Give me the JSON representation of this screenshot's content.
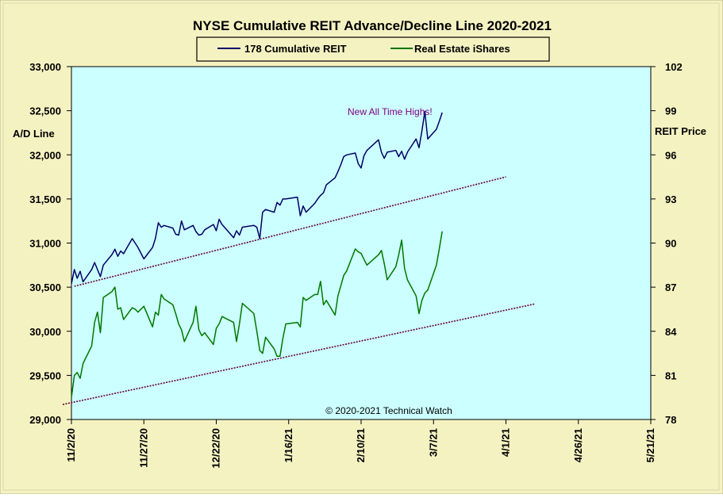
{
  "chart_data": {
    "type": "line",
    "title": "NYSE Cumulative  REIT Advance/Decline  Line 2020-2021",
    "ylabel_left": "A/D Line",
    "ylabel_right": "REIT  Price",
    "annotation": "New All Time Highs!",
    "copyright": "© 2020-2021  Technical  Watch",
    "legend_position": "top-center",
    "grid": false,
    "ylim_left": [
      29000,
      33000
    ],
    "ylim_right": [
      78,
      102
    ],
    "x_range": [
      "2020-11-02",
      "2021-05-21"
    ],
    "y_ticks_left": [
      "29,000",
      "29,500",
      "30,000",
      "30,500",
      "31,000",
      "31,500",
      "32,000",
      "32,500",
      "33,000"
    ],
    "y_ticks_right": [
      "78",
      "81",
      "84",
      "87",
      "90",
      "93",
      "96",
      "99",
      "102"
    ],
    "x_ticks": [
      "11/2/20",
      "11/27/20",
      "12/22/20",
      "1/16/21",
      "2/10/21",
      "3/7/21",
      "4/1/21",
      "4/26/21",
      "5/21/21"
    ],
    "colors": {
      "series_ad": "#000066",
      "series_reit": "#007700",
      "trend": "#660033",
      "plot_bg": "#ccffff",
      "frame_bg": "#f5f2c2",
      "annotation": "#800080"
    },
    "series": [
      {
        "name": "178 Cumulative REIT",
        "axis": "left",
        "x": [
          "2020-11-02",
          "2020-11-03",
          "2020-11-04",
          "2020-11-05",
          "2020-11-06",
          "2020-11-09",
          "2020-11-10",
          "2020-11-11",
          "2020-11-12",
          "2020-11-13",
          "2020-11-16",
          "2020-11-17",
          "2020-11-18",
          "2020-11-19",
          "2020-11-20",
          "2020-11-23",
          "2020-11-24",
          "2020-11-25",
          "2020-11-27",
          "2020-11-30",
          "2020-12-01",
          "2020-12-02",
          "2020-12-03",
          "2020-12-04",
          "2020-12-07",
          "2020-12-08",
          "2020-12-09",
          "2020-12-10",
          "2020-12-11",
          "2020-12-14",
          "2020-12-15",
          "2020-12-16",
          "2020-12-17",
          "2020-12-18",
          "2020-12-21",
          "2020-12-22",
          "2020-12-23",
          "2020-12-24",
          "2020-12-28",
          "2020-12-29",
          "2020-12-30",
          "2020-12-31",
          "2021-01-04",
          "2021-01-05",
          "2021-01-06",
          "2021-01-07",
          "2021-01-08",
          "2021-01-11",
          "2021-01-12",
          "2021-01-13",
          "2021-01-14",
          "2021-01-15",
          "2021-01-19",
          "2021-01-20",
          "2021-01-21",
          "2021-01-22",
          "2021-01-25",
          "2021-01-26",
          "2021-01-27",
          "2021-01-28",
          "2021-01-29",
          "2021-02-01",
          "2021-02-02",
          "2021-02-03",
          "2021-02-04",
          "2021-02-05",
          "2021-02-08",
          "2021-02-09",
          "2021-02-10",
          "2021-02-11",
          "2021-02-12",
          "2021-02-16",
          "2021-02-17",
          "2021-02-18",
          "2021-02-19",
          "2021-02-22",
          "2021-02-23",
          "2021-02-24",
          "2021-02-25",
          "2021-02-26",
          "2021-03-01",
          "2021-03-02",
          "2021-03-03",
          "2021-03-04",
          "2021-03-05",
          "2021-03-08",
          "2021-03-09",
          "2021-03-10"
        ],
        "values": [
          30540,
          30700,
          30600,
          30680,
          30560,
          30700,
          30780,
          30700,
          30620,
          30750,
          30870,
          30930,
          30850,
          30910,
          30880,
          31050,
          31000,
          30950,
          30820,
          30950,
          31050,
          31230,
          31180,
          31200,
          31170,
          31100,
          31090,
          31250,
          31150,
          31200,
          31130,
          31090,
          31100,
          31150,
          31210,
          31140,
          31270,
          31210,
          31060,
          31140,
          31090,
          31180,
          31200,
          31180,
          31050,
          31350,
          31380,
          31350,
          31460,
          31430,
          31500,
          31500,
          31520,
          31310,
          31420,
          31350,
          31450,
          31500,
          31540,
          31570,
          31660,
          31740,
          31810,
          31890,
          31980,
          32000,
          32020,
          31900,
          31850,
          31990,
          32050,
          32170,
          32030,
          31960,
          32030,
          32050,
          31980,
          32040,
          31950,
          32030,
          32180,
          32080,
          32270,
          32490,
          32180,
          32290,
          32380,
          32480
        ]
      },
      {
        "name": "Real Estate iShares",
        "axis": "right",
        "x": [
          "2020-11-02",
          "2020-11-03",
          "2020-11-04",
          "2020-11-05",
          "2020-11-06",
          "2020-11-09",
          "2020-11-10",
          "2020-11-11",
          "2020-11-12",
          "2020-11-13",
          "2020-11-16",
          "2020-11-17",
          "2020-11-18",
          "2020-11-19",
          "2020-11-20",
          "2020-11-23",
          "2020-11-24",
          "2020-11-25",
          "2020-11-27",
          "2020-11-30",
          "2020-12-01",
          "2020-12-02",
          "2020-12-03",
          "2020-12-04",
          "2020-12-07",
          "2020-12-08",
          "2020-12-09",
          "2020-12-10",
          "2020-12-11",
          "2020-12-14",
          "2020-12-15",
          "2020-12-16",
          "2020-12-17",
          "2020-12-18",
          "2020-12-21",
          "2020-12-22",
          "2020-12-23",
          "2020-12-24",
          "2020-12-28",
          "2020-12-29",
          "2020-12-30",
          "2020-12-31",
          "2021-01-04",
          "2021-01-05",
          "2021-01-06",
          "2021-01-07",
          "2021-01-08",
          "2021-01-11",
          "2021-01-12",
          "2021-01-13",
          "2021-01-14",
          "2021-01-15",
          "2021-01-19",
          "2021-01-20",
          "2021-01-21",
          "2021-01-22",
          "2021-01-25",
          "2021-01-26",
          "2021-01-27",
          "2021-01-28",
          "2021-01-29",
          "2021-02-01",
          "2021-02-02",
          "2021-02-03",
          "2021-02-04",
          "2021-02-05",
          "2021-02-08",
          "2021-02-09",
          "2021-02-10",
          "2021-02-11",
          "2021-02-12",
          "2021-02-16",
          "2021-02-17",
          "2021-02-18",
          "2021-02-19",
          "2021-02-22",
          "2021-02-23",
          "2021-02-24",
          "2021-02-25",
          "2021-02-26",
          "2021-03-01",
          "2021-03-02",
          "2021-03-03",
          "2021-03-04",
          "2021-03-05",
          "2021-03-08",
          "2021-03-09",
          "2021-03-10"
        ],
        "values": [
          79.5,
          81.0,
          81.2,
          80.8,
          81.8,
          83.0,
          84.6,
          85.3,
          83.9,
          86.3,
          86.7,
          87.0,
          85.5,
          85.6,
          84.8,
          85.6,
          85.5,
          85.3,
          85.7,
          84.3,
          85.3,
          85.1,
          86.5,
          86.2,
          85.8,
          85.2,
          84.5,
          84.1,
          83.3,
          84.6,
          85.7,
          84.1,
          83.7,
          83.9,
          83.1,
          84.2,
          84.5,
          85.0,
          84.6,
          83.3,
          84.5,
          85.9,
          85.2,
          84.0,
          82.7,
          82.5,
          83.6,
          82.8,
          82.3,
          82.3,
          83.5,
          84.5,
          84.6,
          84.3,
          86.3,
          86.1,
          86.5,
          86.5,
          87.4,
          85.8,
          86.1,
          85.1,
          86.4,
          87.1,
          87.8,
          88.1,
          89.6,
          89.4,
          89.3,
          88.9,
          88.5,
          89.2,
          89.5,
          88.6,
          87.5,
          88.4,
          89.2,
          90.2,
          88.3,
          87.5,
          86.4,
          85.2,
          86.1,
          86.6,
          86.8,
          88.5,
          89.6,
          90.8
        ]
      }
    ],
    "trend_lines": [
      {
        "axis": "left",
        "from": [
          "2020-11-03",
          30510
        ],
        "to": [
          "2021-04-01",
          31750
        ]
      },
      {
        "axis": "left",
        "from": [
          "2020-10-30",
          29170
        ],
        "to": [
          "2021-04-11",
          30310
        ]
      }
    ]
  }
}
